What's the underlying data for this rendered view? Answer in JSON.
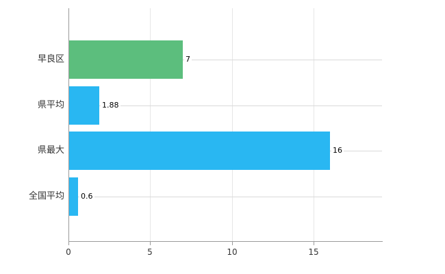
{
  "chart_data": {
    "type": "bar",
    "orientation": "horizontal",
    "title": "",
    "xlabel": "",
    "ylabel": "",
    "categories": [
      "早良区",
      "県平均",
      "県最大",
      "全国平均"
    ],
    "values": [
      7,
      1.88,
      16,
      0.6
    ],
    "value_labels": [
      "7",
      "1.88",
      "16",
      "0.6"
    ],
    "bar_colors": [
      "#5CBE7D",
      "#29B7F2",
      "#29B7F2",
      "#29B7F2"
    ],
    "x_ticks": [
      0,
      5,
      10,
      15
    ],
    "x_tick_labels": [
      "0",
      "5",
      "10",
      "15"
    ],
    "xlim": [
      0,
      19.2
    ],
    "grid": "vertical-lines",
    "legend": "none",
    "colors": {
      "background": "#ffffff",
      "grid_line": "#e6e6e6",
      "axis_line": "#9a9a9a",
      "leader_line": "#d9d9d9",
      "tick_label": "#333333",
      "category_label": "#333333",
      "value_label": "#000000"
    }
  }
}
